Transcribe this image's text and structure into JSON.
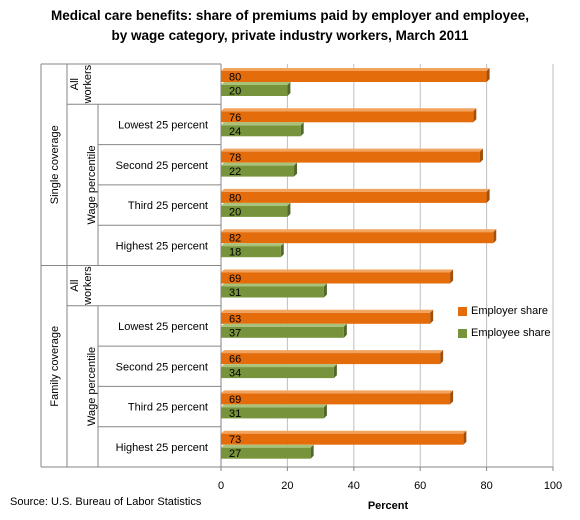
{
  "title_line1": "Medical care benefits: share of premiums paid by employer and employee,",
  "title_line2": "by wage category, private industry workers, March 2011",
  "source": "Source: U.S. Bureau of Labor Statistics",
  "colors": {
    "employer": "#E46C0A",
    "employee": "#77933C",
    "grid": "#bfbfbf",
    "axis": "#868686"
  },
  "chart_data": {
    "type": "bar",
    "orientation": "horizontal",
    "xlabel": "Percent",
    "xlim": [
      0,
      100
    ],
    "xticks": [
      0,
      20,
      40,
      60,
      80,
      100
    ],
    "legend_position": "right",
    "groups": [
      {
        "label": "Single coverage",
        "subgroups": [
          {
            "label": "All workers",
            "categories": [
              ""
            ]
          },
          {
            "label": "Wage percentile",
            "categories": [
              "Lowest 25 percent",
              "Second 25 percent",
              "Third 25 percent",
              "Highest 25 percent"
            ]
          }
        ]
      },
      {
        "label": "Family coverage",
        "subgroups": [
          {
            "label": "All workers",
            "categories": [
              ""
            ]
          },
          {
            "label": "Wage percentile",
            "categories": [
              "Lowest 25 percent",
              "Second 25 percent",
              "Third 25 percent",
              "Highest 25 percent"
            ]
          }
        ]
      }
    ],
    "series": [
      {
        "name": "Employer share",
        "values": [
          80,
          76,
          78,
          80,
          82,
          69,
          63,
          66,
          69,
          73
        ]
      },
      {
        "name": "Employee share",
        "values": [
          20,
          24,
          22,
          20,
          18,
          31,
          37,
          34,
          31,
          27
        ]
      }
    ]
  }
}
